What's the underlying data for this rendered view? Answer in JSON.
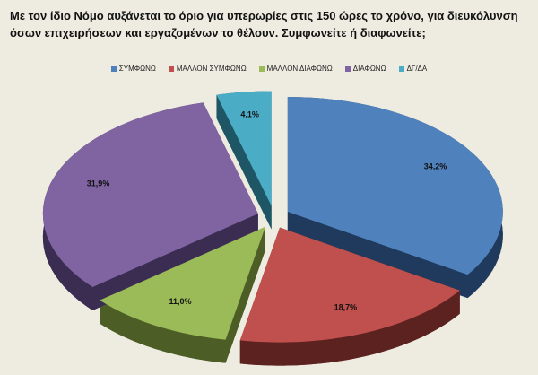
{
  "chart_data": {
    "type": "pie",
    "title": "Με τον ίδιο Νόμο αυξάνεται το όριο για υπερωρίες στις 150 ώρες το χρόνο, για διευκόλυνση όσων επιχειρήσεων και εργαζομένων το θέλουν. Συμφωνείτε ή διαφωνείτε;",
    "legend_position": "top",
    "style": "3d-exploded",
    "categories": [
      "ΣΥΜΦΩΝΩ",
      "ΜΑΛΛΟΝ ΣΥΜΦΩΝΩ",
      "ΜΑΛΛΟΝ ΔΙΑΦΩΝΩ",
      "ΔΙΑΦΩΝΩ",
      "ΔΓ/ΔΑ"
    ],
    "values": [
      34.2,
      18.7,
      11.0,
      31.9,
      4.1
    ],
    "labels": [
      "34,2%",
      "18,7%",
      "11,0%",
      "31,9%",
      "4,1%"
    ],
    "colors": [
      "#4f81bd",
      "#c0504d",
      "#9bbb59",
      "#8064a2",
      "#4bacc6"
    ],
    "dark_colors": [
      "#1f3a5c",
      "#5c2220",
      "#4c5e26",
      "#3b2d52",
      "#1f5666"
    ]
  }
}
